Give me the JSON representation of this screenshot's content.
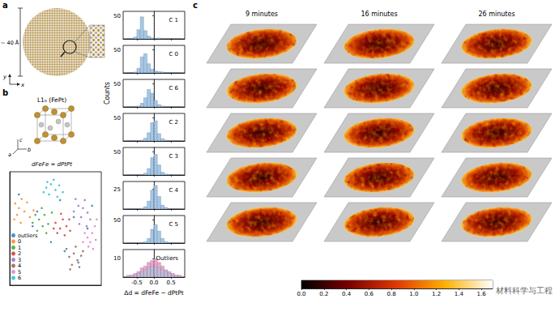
{
  "panels": {
    "a": {
      "label": "a",
      "size_label": "~ 40 Å",
      "axes": [
        "y",
        "x"
      ]
    },
    "b": {
      "label": "b",
      "structure_title": "L1₀ (FePt)",
      "lattice_axes": [
        "c",
        "a",
        "b"
      ],
      "equation": "dFeFe = dPtPt"
    },
    "c": {
      "label": "c",
      "times": [
        "9 minutes",
        "16 minutes",
        "26 minutes"
      ],
      "slices_per_time": 5
    }
  },
  "watermark": "材料科学与工程",
  "chart_data": [
    {
      "type": "scatter",
      "xlim": [
        0,
        10
      ],
      "ylim": [
        0,
        10
      ],
      "tick_labels": false,
      "legend": "bottom-left",
      "series": [
        {
          "name": "outliers",
          "color": "#1f77b4",
          "values": [
            [
              1,
              8
            ],
            [
              3,
              6.5
            ],
            [
              5.5,
              7.5
            ],
            [
              7,
              6
            ],
            [
              8.5,
              5
            ],
            [
              6,
              3
            ],
            [
              4.5,
              3.8
            ],
            [
              2.5,
              5.2
            ],
            [
              7.5,
              2
            ],
            [
              9,
              7
            ]
          ]
        },
        {
          "name": "0",
          "color": "#ff7f0e",
          "values": [
            [
              0.6,
              7.2
            ],
            [
              1,
              6.8
            ],
            [
              1.3,
              7.6
            ],
            [
              0.8,
              6.2
            ],
            [
              1.6,
              6.5
            ],
            [
              1.9,
              7.3
            ],
            [
              2.2,
              6
            ],
            [
              1.2,
              5.5
            ],
            [
              2.6,
              6.6
            ],
            [
              0.5,
              5.8
            ]
          ]
        },
        {
          "name": "1",
          "color": "#2ca02c",
          "values": [
            [
              2.5,
              5.5
            ],
            [
              3.2,
              5.8
            ],
            [
              3.8,
              6.2
            ],
            [
              3,
              4.8
            ],
            [
              4.2,
              5.4
            ],
            [
              3.5,
              6.8
            ],
            [
              4.6,
              6.4
            ],
            [
              2.8,
              6.2
            ],
            [
              4,
              4.6
            ],
            [
              3.6,
              5.2
            ]
          ]
        },
        {
          "name": "2",
          "color": "#d62728",
          "values": [
            [
              5,
              5.5
            ],
            [
              5.5,
              5
            ],
            [
              5.8,
              5.8
            ],
            [
              6.2,
              5.2
            ],
            [
              5.2,
              4.6
            ],
            [
              6,
              4.4
            ],
            [
              6.5,
              5.8
            ],
            [
              5.6,
              6.3
            ],
            [
              4.8,
              5
            ],
            [
              6.6,
              4.8
            ]
          ]
        },
        {
          "name": "3",
          "color": "#9467bd",
          "values": [
            [
              7,
              6.5
            ],
            [
              7.5,
              7
            ],
            [
              8,
              6.8
            ],
            [
              7.8,
              6
            ],
            [
              8.5,
              6.4
            ],
            [
              7.2,
              7.6
            ],
            [
              8.2,
              7.5
            ],
            [
              8.8,
              5.8
            ],
            [
              7.6,
              5.4
            ],
            [
              8.4,
              5.2
            ]
          ]
        },
        {
          "name": "4",
          "color": "#8c564b",
          "values": [
            [
              6.5,
              2.5
            ],
            [
              7,
              2.8
            ],
            [
              7.4,
              2.2
            ],
            [
              6.8,
              1.8
            ],
            [
              7.8,
              2.6
            ],
            [
              6.2,
              3.2
            ],
            [
              7.2,
              3.4
            ],
            [
              8,
              3
            ],
            [
              6.6,
              1.4
            ],
            [
              7.6,
              1.6
            ]
          ]
        },
        {
          "name": "5",
          "color": "#e377c2",
          "values": [
            [
              8.5,
              4.2
            ],
            [
              9,
              4.6
            ],
            [
              8.8,
              3.8
            ],
            [
              9.3,
              5.2
            ],
            [
              8.2,
              4.6
            ],
            [
              9.4,
              4
            ],
            [
              8.6,
              3.4
            ],
            [
              9.1,
              3.2
            ],
            [
              8,
              3.8
            ],
            [
              9.5,
              5.8
            ]
          ]
        },
        {
          "name": "6",
          "color": "#17becf",
          "values": [
            [
              4,
              8.6
            ],
            [
              4.5,
              8.9
            ],
            [
              5,
              8.4
            ],
            [
              4.3,
              8
            ],
            [
              5.4,
              8.8
            ],
            [
              3.7,
              8.2
            ],
            [
              4.8,
              9.3
            ],
            [
              5.8,
              8.2
            ],
            [
              4.1,
              9.1
            ],
            [
              5.2,
              7.8
            ]
          ]
        }
      ]
    },
    {
      "type": "histogram",
      "title": "C 1",
      "bins": [
        -0.8,
        -0.7,
        -0.6,
        -0.5,
        -0.4,
        -0.3,
        -0.2,
        -0.1,
        0,
        0.1,
        0.2,
        0.3,
        0.4,
        0.5,
        0.6,
        0.7,
        0.8
      ],
      "values": [
        0,
        1,
        4,
        20,
        48,
        18,
        6,
        2,
        1,
        2,
        1,
        0,
        0,
        0,
        0,
        0
      ],
      "color": "#a6c8e6",
      "xlim": [
        -0.9,
        0.9
      ],
      "ylim": [
        0,
        60
      ],
      "xticks": [
        -0.5,
        {
          "value": 0,
          "label": "0.0"
        },
        0.5
      ],
      "yticks": [
        50
      ],
      "tick_labels": "y",
      "ref_x": 0
    },
    {
      "type": "histogram",
      "title": "C 0",
      "bins": [
        -0.8,
        -0.7,
        -0.6,
        -0.5,
        -0.4,
        -0.3,
        -0.2,
        -0.1,
        0,
        0.1,
        0.2,
        0.3,
        0.4,
        0.5,
        0.6,
        0.7,
        0.8
      ],
      "values": [
        0,
        0,
        2,
        10,
        35,
        42,
        20,
        8,
        4,
        3,
        2,
        1,
        0,
        0,
        0,
        0
      ],
      "color": "#a6c8e6",
      "xlim": [
        -0.9,
        0.9
      ],
      "ylim": [
        0,
        60
      ],
      "xticks": [
        -0.5,
        {
          "value": 0,
          "label": "0.0"
        },
        0.5
      ],
      "yticks": [
        50
      ],
      "tick_labels": "y",
      "ref_x": 0
    },
    {
      "type": "histogram",
      "title": "C 6",
      "ylabel": "Counts",
      "bins": [
        -0.8,
        -0.7,
        -0.6,
        -0.5,
        -0.4,
        -0.3,
        -0.2,
        -0.1,
        0,
        0.1,
        0.2,
        0.3,
        0.4,
        0.5,
        0.6,
        0.7,
        0.8
      ],
      "values": [
        0,
        0,
        0,
        2,
        8,
        20,
        38,
        30,
        14,
        5,
        2,
        1,
        0,
        0,
        0,
        0
      ],
      "color": "#a6c8e6",
      "xlim": [
        -0.9,
        0.9
      ],
      "ylim": [
        0,
        60
      ],
      "xticks": [
        -0.5,
        {
          "value": 0,
          "label": "0.0"
        },
        0.5
      ],
      "yticks": [
        50
      ],
      "tick_labels": "y",
      "ref_x": 0
    },
    {
      "type": "histogram",
      "title": "C 2",
      "bins": [
        -0.8,
        -0.7,
        -0.6,
        -0.5,
        -0.4,
        -0.3,
        -0.2,
        -0.1,
        0,
        0.1,
        0.2,
        0.3,
        0.4,
        0.5,
        0.6,
        0.7,
        0.8
      ],
      "values": [
        0,
        0,
        0,
        0,
        2,
        6,
        18,
        40,
        44,
        16,
        5,
        2,
        0,
        0,
        0,
        0
      ],
      "color": "#a6c8e6",
      "xlim": [
        -0.9,
        0.9
      ],
      "ylim": [
        0,
        60
      ],
      "xticks": [
        -0.5,
        {
          "value": 0,
          "label": "0.0"
        },
        0.5
      ],
      "yticks": [
        50
      ],
      "tick_labels": "y",
      "ref_x": 0
    },
    {
      "type": "histogram",
      "title": "C 3",
      "bins": [
        -0.8,
        -0.7,
        -0.6,
        -0.5,
        -0.4,
        -0.3,
        -0.2,
        -0.1,
        0,
        0.1,
        0.2,
        0.3,
        0.4,
        0.5,
        0.6,
        0.7,
        0.8
      ],
      "values": [
        0,
        0,
        0,
        0,
        1,
        4,
        14,
        38,
        45,
        22,
        6,
        2,
        1,
        0,
        0,
        0
      ],
      "color": "#a6c8e6",
      "xlim": [
        -0.9,
        0.9
      ],
      "ylim": [
        0,
        60
      ],
      "xticks": [
        -0.5,
        {
          "value": 0,
          "label": "0.0"
        },
        0.5
      ],
      "yticks": [
        50
      ],
      "tick_labels": "y",
      "ref_x": 0
    },
    {
      "type": "histogram",
      "title": "C 4",
      "bins": [
        -0.8,
        -0.7,
        -0.6,
        -0.5,
        -0.4,
        -0.3,
        -0.2,
        -0.1,
        0,
        0.1,
        0.2,
        0.3,
        0.4,
        0.5,
        0.6,
        0.7,
        0.8
      ],
      "values": [
        0,
        0,
        0,
        0,
        1,
        3,
        10,
        24,
        30,
        16,
        5,
        2,
        0,
        0,
        0,
        0
      ],
      "color": "#a6c8e6",
      "xlim": [
        -0.9,
        0.9
      ],
      "ylim": [
        0,
        35
      ],
      "xticks": [
        -0.5,
        {
          "value": 0,
          "label": "0.0"
        },
        0.5
      ],
      "yticks": [
        25
      ],
      "tick_labels": "y",
      "ref_x": 0
    },
    {
      "type": "histogram",
      "title": "C 5",
      "bins": [
        -0.8,
        -0.7,
        -0.6,
        -0.5,
        -0.4,
        -0.3,
        -0.2,
        -0.1,
        0,
        0.1,
        0.2,
        0.3,
        0.4,
        0.5,
        0.6,
        0.7,
        0.8
      ],
      "values": [
        0,
        0,
        0,
        0,
        1,
        3,
        10,
        30,
        40,
        26,
        10,
        3,
        1,
        0,
        0,
        0
      ],
      "color": "#a6c8e6",
      "xlim": [
        -0.9,
        0.9
      ],
      "ylim": [
        0,
        60
      ],
      "xticks": [
        -0.5,
        {
          "value": 0,
          "label": "0.0"
        },
        0.5
      ],
      "yticks": [
        50
      ],
      "tick_labels": "y",
      "ref_x": 0
    },
    {
      "type": "histogram",
      "title": "Outliers",
      "xlabel": "Δd = dFeFe − dPtPt",
      "bins": [
        -0.8,
        -0.7,
        -0.6,
        -0.5,
        -0.4,
        -0.3,
        -0.2,
        -0.1,
        0,
        0.1,
        0.2,
        0.3,
        0.4,
        0.5,
        0.6,
        0.7,
        0.8
      ],
      "series": [
        {
          "color": "#f4a6c8",
          "values": [
            1,
            1,
            2,
            3,
            5,
            6,
            8,
            9,
            10,
            8,
            6,
            4,
            3,
            2,
            1,
            1
          ]
        },
        {
          "color": "#9ecae1",
          "values": [
            0,
            1,
            1,
            2,
            3,
            4,
            5,
            6,
            6,
            5,
            4,
            3,
            2,
            1,
            1,
            0
          ]
        }
      ],
      "xlim": [
        -0.9,
        0.9
      ],
      "ylim": [
        0,
        15
      ],
      "xticks": [
        -0.5,
        {
          "value": 0,
          "label": "0.0"
        },
        0.5
      ],
      "yticks": [
        10
      ],
      "ref_x": 0
    },
    {
      "type": "colorbar",
      "xlim": [
        0,
        1.7
      ],
      "xticks": [
        {
          "value": 0,
          "label": "0.0"
        },
        0.2,
        0.4,
        0.6,
        0.8,
        {
          "value": 1,
          "label": "1.0"
        },
        1.2,
        1.4,
        1.6
      ]
    }
  ]
}
